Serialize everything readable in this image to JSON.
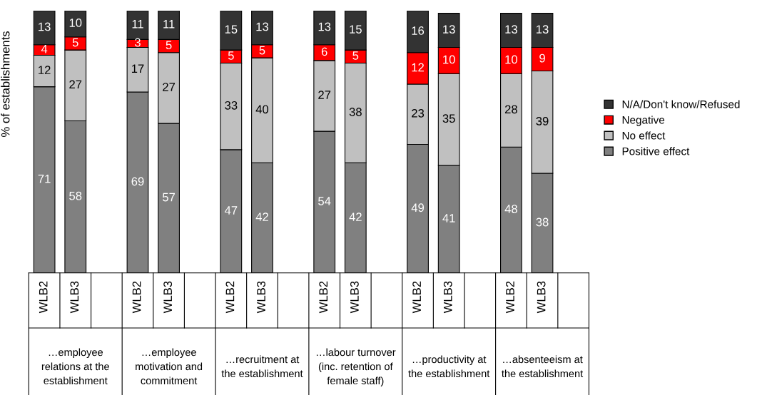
{
  "chart_data": {
    "type": "bar",
    "stacked": true,
    "data_labels": true,
    "tick_labels": "x",
    "legend": "right",
    "grid": false,
    "ylabel": "% of establishments",
    "categories": [
      "WLB2",
      "WLB3",
      null,
      "WLB2",
      "WLB3",
      null,
      "WLB2",
      "WLB3",
      null,
      "WLB2",
      "WLB3",
      null,
      "WLB2",
      "WLB3",
      null,
      "WLB2",
      "WLB3",
      null
    ],
    "series": [
      {
        "name": "Positive effect",
        "color": "#808080",
        "values": [
          71,
          58,
          null,
          69,
          57,
          null,
          47,
          42,
          null,
          54,
          42,
          null,
          49,
          41,
          null,
          48,
          38,
          null
        ]
      },
      {
        "name": "No effect",
        "color": "#c0c0c0",
        "values": [
          12,
          27,
          null,
          17,
          27,
          null,
          33,
          40,
          null,
          27,
          38,
          null,
          23,
          35,
          null,
          28,
          39,
          null
        ]
      },
      {
        "name": "Negative",
        "color": "#ff0000",
        "values": [
          4,
          5,
          null,
          3,
          5,
          null,
          5,
          5,
          null,
          6,
          5,
          null,
          12,
          10,
          null,
          10,
          9,
          null
        ]
      },
      {
        "name": "N/A/Don't know/Refused",
        "color": "#333333",
        "values": [
          13,
          10,
          null,
          11,
          11,
          null,
          15,
          13,
          null,
          13,
          15,
          null,
          16,
          13,
          null,
          13,
          13,
          null
        ]
      }
    ],
    "annotations": [
      "…employee\nrelations at the\nestablishment",
      "…employee\nmotivation and\ncommitment",
      "…recruitment at\nthe establishment",
      "…labour turnover\n(inc. retention of\nfemale staff)",
      "…productivity at\nthe establishment",
      "…absenteeism at\nthe establishment"
    ]
  }
}
